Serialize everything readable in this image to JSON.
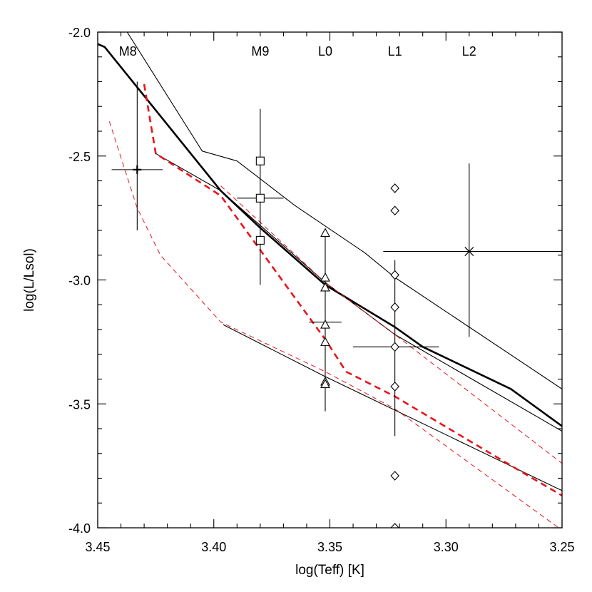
{
  "chart_data": {
    "type": "scatter",
    "title": "",
    "xlabel": "log(Teff) [K]",
    "ylabel": "log(L/Lsol)",
    "xlim": [
      3.45,
      3.25
    ],
    "ylim": [
      -4.0,
      -2.0
    ],
    "x_reversed": true,
    "grid": false,
    "legend": "none",
    "x_ticks": [
      {
        "value": 3.45,
        "label": "3.45"
      },
      {
        "value": 3.4,
        "label": "3.40"
      },
      {
        "value": 3.35,
        "label": "3.35"
      },
      {
        "value": 3.3,
        "label": "3.30"
      },
      {
        "value": 3.25,
        "label": "3.25"
      }
    ],
    "y_ticks": [
      {
        "value": -2.0,
        "label": "-2.0"
      },
      {
        "value": -2.5,
        "label": "-2.5"
      },
      {
        "value": -3.0,
        "label": "-3.0"
      },
      {
        "value": -3.5,
        "label": "-3.5"
      },
      {
        "value": -4.0,
        "label": "-4.0"
      }
    ],
    "spectral_types": [
      {
        "label": "M8",
        "x": 3.437
      },
      {
        "label": "M9",
        "x": 3.38
      },
      {
        "label": "L0",
        "x": 3.352
      },
      {
        "label": "L1",
        "x": 3.322
      },
      {
        "label": "L2",
        "x": 3.29
      }
    ],
    "lines": [
      {
        "style": "solid-thick",
        "color": "#000000",
        "points": [
          [
            3.452,
            -2.04
          ],
          [
            3.447,
            -2.06
          ],
          [
            3.397,
            -2.64
          ],
          [
            3.38,
            -2.79
          ],
          [
            3.352,
            -3.02
          ],
          [
            3.322,
            -3.19
          ],
          [
            3.31,
            -3.27
          ],
          [
            3.272,
            -3.44
          ],
          [
            3.25,
            -3.59
          ]
        ]
      },
      {
        "style": "solid-thin",
        "color": "#000000",
        "points": [
          [
            3.438,
            -1.99
          ],
          [
            3.405,
            -2.48
          ],
          [
            3.39,
            -2.52
          ],
          [
            3.365,
            -2.7
          ],
          [
            3.335,
            -2.89
          ],
          [
            3.322,
            -2.99
          ],
          [
            3.25,
            -3.44
          ]
        ]
      },
      {
        "style": "solid-thin",
        "color": "#000000",
        "points": [
          [
            3.425,
            -2.49
          ],
          [
            3.397,
            -2.64
          ],
          [
            3.352,
            -3.01
          ],
          [
            3.322,
            -3.22
          ],
          [
            3.25,
            -3.61
          ]
        ]
      },
      {
        "style": "solid-thin",
        "color": "#000000",
        "points": [
          [
            3.396,
            -3.18
          ],
          [
            3.352,
            -3.39
          ],
          [
            3.25,
            -3.85
          ]
        ]
      },
      {
        "style": "dashed-thick",
        "color": "#e8151b",
        "points": [
          [
            3.43,
            -2.21
          ],
          [
            3.427,
            -2.38
          ],
          [
            3.425,
            -2.49
          ],
          [
            3.397,
            -2.66
          ],
          [
            3.352,
            -3.24
          ],
          [
            3.343,
            -3.37
          ],
          [
            3.322,
            -3.47
          ],
          [
            3.27,
            -3.76
          ],
          [
            3.25,
            -3.87
          ]
        ]
      },
      {
        "style": "dashed-thin",
        "color": "#e8151b",
        "points": [
          [
            3.445,
            -2.36
          ],
          [
            3.433,
            -2.71
          ],
          [
            3.423,
            -2.9
          ],
          [
            3.397,
            -3.17
          ],
          [
            3.352,
            -3.37
          ],
          [
            3.322,
            -3.52
          ],
          [
            3.25,
            -4.01
          ]
        ]
      },
      {
        "style": "dashed-thin",
        "color": "#e8151b",
        "points": [
          [
            3.397,
            -2.62
          ],
          [
            3.352,
            -3.01
          ],
          [
            3.322,
            -3.22
          ],
          [
            3.25,
            -3.74
          ]
        ]
      }
    ],
    "series": [
      {
        "marker": "plus",
        "x": [
          3.433
        ],
        "y": [
          -2.555
        ],
        "xerr": [
          0.011
        ],
        "yerr_up": [
          0.355
        ],
        "yerr_down": [
          0.245
        ]
      },
      {
        "marker": "square",
        "x": [
          3.38,
          3.38,
          3.38
        ],
        "y": [
          -2.52,
          -2.67,
          -2.84
        ],
        "xerr_point": {
          "x": 3.38,
          "y": -2.67,
          "xlo": 3.37,
          "xhi": 3.39
        },
        "yerr_line": {
          "x": 3.38,
          "ylo": -3.02,
          "yhi": -2.31
        }
      },
      {
        "marker": "triangle",
        "x": [
          3.352,
          3.352,
          3.352,
          3.352,
          3.352,
          3.352,
          3.352
        ],
        "y": [
          -2.81,
          -2.99,
          -3.03,
          -3.18,
          -3.25,
          -3.41,
          -3.42
        ],
        "xerr_point": {
          "x": 3.352,
          "y": -3.17,
          "xlo": 3.345,
          "xhi": 3.359
        },
        "yerr_line": {
          "x": 3.352,
          "ylo": -3.53,
          "yhi": -2.82
        }
      },
      {
        "marker": "diamond",
        "x": [
          3.322,
          3.322,
          3.322,
          3.322,
          3.322,
          3.322,
          3.322,
          3.322
        ],
        "y": [
          -2.63,
          -2.72,
          -2.98,
          -3.11,
          -3.27,
          -3.43,
          -3.79,
          -4.0
        ],
        "xerr_point": {
          "x": 3.322,
          "y": -3.27,
          "xlo": 3.303,
          "xhi": 3.34
        },
        "yerr_line": {
          "x": 3.322,
          "ylo": -3.63,
          "yhi": -2.92
        }
      },
      {
        "marker": "cross",
        "x": [
          3.29
        ],
        "y": [
          -2.885
        ],
        "xerr_point": {
          "x": 3.29,
          "y": -2.885,
          "xlo": 3.25,
          "xhi": 3.327
        },
        "yerr_line": {
          "x": 3.29,
          "ylo": -3.23,
          "yhi": -2.53
        }
      }
    ]
  }
}
